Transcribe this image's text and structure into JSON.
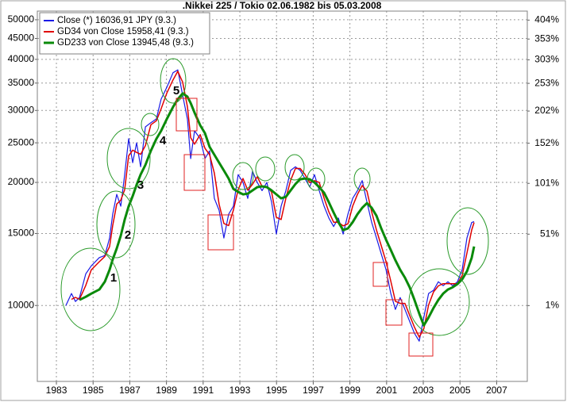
{
  "chart_data": {
    "type": "line",
    "title": ".Nikkei 225 / Tokio 02.06.1982 bis 05.03.2008",
    "x": [
      1983.52,
      1983.82,
      1984.04,
      1984.26,
      1984.6,
      1984.9,
      1985.34,
      1985.64,
      1985.9,
      1986.07,
      1986.29,
      1986.51,
      1986.72,
      1986.94,
      1987.16,
      1987.37,
      1987.59,
      1987.85,
      1988.15,
      1988.45,
      1988.71,
      1989.02,
      1989.36,
      1989.62,
      1989.88,
      1990.14,
      1990.32,
      1990.53,
      1990.84,
      1991.1,
      1991.35,
      1991.61,
      1991.87,
      1992.13,
      1992.39,
      1992.65,
      1992.91,
      1993.17,
      1993.43,
      1993.69,
      1993.95,
      1994.21,
      1994.47,
      1994.73,
      1994.99,
      1995.25,
      1995.51,
      1995.77,
      1996.03,
      1996.29,
      1996.55,
      1996.81,
      1997.07,
      1997.33,
      1997.59,
      1997.85,
      1998.11,
      1998.37,
      1998.63,
      1998.89,
      1999.15,
      1999.41,
      1999.67,
      1999.93,
      2000.19,
      2000.45,
      2000.71,
      2000.97,
      2001.23,
      2001.48,
      2001.74,
      2002.0,
      2002.26,
      2002.52,
      2002.78,
      2003.03,
      2003.29,
      2003.56,
      2003.82,
      2004.08,
      2004.34,
      2004.6,
      2004.86,
      2005.12,
      2005.38,
      2005.64,
      2005.77
    ],
    "series": [
      {
        "name": "Close (*) 16036,91 JPY (9.3.)",
        "color": "#1a1ae6",
        "width": 1.2,
        "values": [
          10000,
          10700,
          10230,
          10460,
          11950,
          12500,
          13100,
          13250,
          14630,
          16720,
          18700,
          17500,
          20900,
          25600,
          22360,
          25000,
          21850,
          27350,
          28000,
          28600,
          31970,
          34200,
          37100,
          37700,
          32700,
          28600,
          22870,
          26750,
          25600,
          22870,
          23900,
          18280,
          17100,
          14630,
          16720,
          17500,
          20900,
          20000,
          18280,
          21300,
          20000,
          19100,
          20000,
          17900,
          14950,
          17500,
          19100,
          21400,
          21850,
          21400,
          20450,
          19500,
          20900,
          19100,
          17500,
          16370,
          15600,
          16370,
          14950,
          16720,
          18280,
          19100,
          20200,
          17900,
          15950,
          14630,
          13370,
          12240,
          10700,
          9780,
          10460,
          9780,
          9140,
          8550,
          8180,
          9350,
          10700,
          10900,
          11430,
          11180,
          11430,
          11180,
          11430,
          12240,
          14630,
          15960,
          16037
        ]
      },
      {
        "name": "GD34 von Close 15958,41 (9.3.)",
        "color": "#e00000",
        "width": 1.5,
        "values": [
          null,
          10350,
          10470,
          10350,
          11200,
          12220,
          12800,
          13180,
          13940,
          15680,
          17710,
          18100,
          19200,
          23250,
          23980,
          23680,
          23430,
          24600,
          27680,
          28300,
          30290,
          33090,
          35650,
          37400,
          35200,
          30650,
          25740,
          24810,
          26180,
          24240,
          23390,
          21090,
          17690,
          15870,
          15680,
          17110,
          19200,
          20450,
          19140,
          19790,
          20650,
          19550,
          19550,
          18950,
          16430,
          16230,
          18300,
          20250,
          21630,
          21630,
          20930,
          19980,
          20200,
          20000,
          18300,
          16940,
          15990,
          15990,
          15660,
          15840,
          17500,
          18690,
          19650,
          19050,
          16930,
          15290,
          14000,
          12810,
          11470,
          10240,
          10120,
          10120,
          9460,
          8850,
          8370,
          8770,
          10030,
          10800,
          11170,
          11310,
          11310,
          11310,
          11310,
          11840,
          13440,
          15300,
          15958
        ]
      },
      {
        "name": "GD233 von Close 13945,48 (9.3.)",
        "color": "#0a8a0a",
        "width": 3,
        "values": [
          null,
          null,
          null,
          10320,
          10500,
          10690,
          10940,
          11430,
          12230,
          12960,
          13790,
          14820,
          16210,
          17480,
          18530,
          19730,
          20910,
          22070,
          23910,
          25570,
          26740,
          28600,
          30590,
          31980,
          33000,
          32420,
          31270,
          29630,
          27590,
          26390,
          24450,
          23380,
          22360,
          21390,
          20450,
          19290,
          18960,
          18700,
          18780,
          19120,
          19480,
          19560,
          19480,
          19120,
          18700,
          18290,
          18440,
          19120,
          19820,
          20360,
          20450,
          20360,
          20000,
          19480,
          18870,
          17880,
          16880,
          15990,
          15290,
          15430,
          15990,
          16720,
          17330,
          17800,
          17330,
          16570,
          15430,
          14490,
          13670,
          12900,
          12230,
          11700,
          11080,
          10320,
          9560,
          8940,
          9350,
          9870,
          10320,
          10690,
          10940,
          11080,
          11280,
          11590,
          12120,
          13080,
          13945
        ]
      }
    ],
    "xlim": [
      1981.96,
      2008.67
    ],
    "xticks": [
      1983,
      1985,
      1987,
      1989,
      1991,
      1993,
      1995,
      1997,
      1999,
      2001,
      2003,
      2005,
      2007
    ],
    "ylim": [
      6520,
      52500
    ],
    "ylog": true,
    "yticks": [
      10000,
      15000,
      20000,
      25000,
      30000,
      35000,
      40000,
      45000,
      50000
    ],
    "y2lim": [
      -34.1,
      430.2
    ],
    "y2log": true,
    "y2ticks": [
      {
        "value": 1,
        "label": "1%"
      },
      {
        "value": 51,
        "label": "51%"
      },
      {
        "value": 101,
        "label": "101%"
      },
      {
        "value": 152,
        "label": "152%"
      },
      {
        "value": 202,
        "label": "202%"
      },
      {
        "value": 253,
        "label": "253%"
      },
      {
        "value": 303,
        "label": "303%"
      },
      {
        "value": 353,
        "label": "353%"
      },
      {
        "value": 404,
        "label": "404%"
      }
    ],
    "grid": true,
    "legend": "top-left",
    "annotations": [
      "1",
      "2",
      "3",
      "4",
      "5"
    ]
  }
}
